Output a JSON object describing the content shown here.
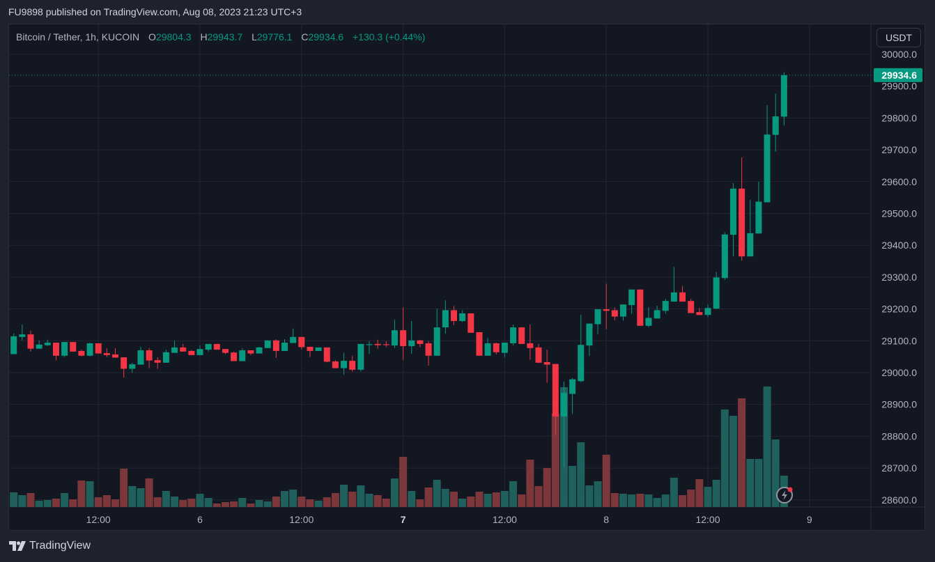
{
  "publish_line": "FU9898 published on TradingView.com, Aug 08, 2023 21:23 UTC+3",
  "legend": {
    "symbol": "Bitcoin / Tether, 1h, KUCOIN",
    "o_label": "O",
    "o_value": "29804.3",
    "h_label": "H",
    "h_value": "29943.7",
    "l_label": "L",
    "l_value": "29776.1",
    "c_label": "C",
    "c_value": "29934.6",
    "change": "+130.3 (+0.44%)"
  },
  "currency_button": "USDT",
  "brand": "TradingView",
  "colors": {
    "up": "#089981",
    "down": "#f23645",
    "up_volume": "#1f5f5c",
    "down_volume": "#7c373b",
    "background": "#131722",
    "grid": "#242733",
    "axis_text": "#b2b5be"
  },
  "chart_data": {
    "type": "candlestick",
    "interval": "1h",
    "x_start": "2023-08-05 02:00",
    "ylim": [
      28600,
      30000
    ],
    "y_ticks": [
      "28600.0",
      "28700.0",
      "28800.0",
      "28900.0",
      "29000.0",
      "29100.0",
      "29200.0",
      "29300.0",
      "29400.0",
      "29500.0",
      "29600.0",
      "29700.0",
      "29800.0",
      "29900.0",
      "30000.0"
    ],
    "x_ticks": [
      {
        "label": "12:00",
        "time": "2023-08-05 12:00",
        "bold": false
      },
      {
        "label": "6",
        "time": "2023-08-06 00:00",
        "bold": false
      },
      {
        "label": "12:00",
        "time": "2023-08-06 12:00",
        "bold": false
      },
      {
        "label": "7",
        "time": "2023-08-07 00:00",
        "bold": true
      },
      {
        "label": "12:00",
        "time": "2023-08-07 12:00",
        "bold": false
      },
      {
        "label": "8",
        "time": "2023-08-08 00:00",
        "bold": false
      },
      {
        "label": "12:00",
        "time": "2023-08-08 12:00",
        "bold": false
      },
      {
        "label": "9",
        "time": "2023-08-09 00:00",
        "bold": false
      }
    ],
    "grid": true,
    "last_price": "29934.6",
    "ohlc_columns": [
      "open",
      "high",
      "low",
      "close"
    ],
    "ohlc": [
      [
        29058,
        29123,
        29058,
        29114
      ],
      [
        29112,
        29151,
        29101,
        29120
      ],
      [
        29120,
        29131,
        29066,
        29075
      ],
      [
        29075,
        29101,
        29075,
        29088
      ],
      [
        29086,
        29103,
        29083,
        29094
      ],
      [
        29094,
        29094,
        29038,
        29053
      ],
      [
        29053,
        29096,
        29049,
        29096
      ],
      [
        29096,
        29096,
        29066,
        29066
      ],
      [
        29068,
        29072,
        29051,
        29053
      ],
      [
        29053,
        29094,
        29051,
        29092
      ],
      [
        29092,
        29092,
        29060,
        29060
      ],
      [
        29061,
        29077,
        29049,
        29055
      ],
      [
        29057,
        29077,
        29047,
        29047
      ],
      [
        29048,
        29048,
        28985,
        29012
      ],
      [
        29012,
        29031,
        28999,
        29026
      ],
      [
        29025,
        29081,
        29025,
        29070
      ],
      [
        29070,
        29077,
        29014,
        29038
      ],
      [
        29039,
        29048,
        29012,
        29031
      ],
      [
        29031,
        29072,
        29031,
        29064
      ],
      [
        29062,
        29101,
        29062,
        29079
      ],
      [
        29079,
        29090,
        29066,
        29066
      ],
      [
        29068,
        29070,
        29055,
        29055
      ],
      [
        29055,
        29085,
        29055,
        29074
      ],
      [
        29072,
        29090,
        29066,
        29090
      ],
      [
        29090,
        29090,
        29072,
        29072
      ],
      [
        29074,
        29074,
        29058,
        29062
      ],
      [
        29063,
        29066,
        29036,
        29036
      ],
      [
        29036,
        29077,
        29036,
        29070
      ],
      [
        29070,
        29070,
        29055,
        29060
      ],
      [
        29060,
        29081,
        29060,
        29079
      ],
      [
        29077,
        29101,
        29077,
        29101
      ],
      [
        29101,
        29105,
        29046,
        29068
      ],
      [
        29068,
        29105,
        29068,
        29094
      ],
      [
        29093,
        29138,
        29093,
        29112
      ],
      [
        29112,
        29112,
        29073,
        29080
      ],
      [
        29081,
        29081,
        29049,
        29068
      ],
      [
        29068,
        29079,
        29068,
        29079
      ],
      [
        29079,
        29079,
        29032,
        29034
      ],
      [
        29035,
        29039,
        29014,
        29014
      ],
      [
        29014,
        29062,
        28994,
        29037
      ],
      [
        29037,
        29053,
        29003,
        29009
      ],
      [
        29009,
        29090,
        29003,
        29090
      ],
      [
        29088,
        29099,
        29058,
        29089
      ],
      [
        29090,
        29103,
        29075,
        29086
      ],
      [
        29089,
        29099,
        29080,
        29087
      ],
      [
        29085,
        29166,
        29077,
        29133
      ],
      [
        29133,
        29205,
        29040,
        29083
      ],
      [
        29083,
        29162,
        29059,
        29101
      ],
      [
        29101,
        29103,
        29079,
        29090
      ],
      [
        29092,
        29099,
        29022,
        29053
      ],
      [
        29053,
        29201,
        29053,
        29142
      ],
      [
        29142,
        29227,
        29122,
        29196
      ],
      [
        29196,
        29209,
        29149,
        29162
      ],
      [
        29162,
        29196,
        29159,
        29186
      ],
      [
        29186,
        29186,
        29125,
        29125
      ],
      [
        29127,
        29127,
        29053,
        29053
      ],
      [
        29053,
        29109,
        29053,
        29092
      ],
      [
        29092,
        29094,
        29057,
        29064
      ],
      [
        29062,
        29094,
        29049,
        29094
      ],
      [
        29092,
        29151,
        29085,
        29142
      ],
      [
        29142,
        29142,
        29090,
        29090
      ],
      [
        29092,
        29151,
        29040,
        29077
      ],
      [
        29079,
        29090,
        29031,
        29031
      ],
      [
        29033,
        29072,
        28968,
        29025
      ],
      [
        29027,
        29027,
        28803,
        28862
      ],
      [
        28862,
        28972,
        28703,
        28936
      ],
      [
        28933,
        28983,
        28870,
        28979
      ],
      [
        28973,
        29182,
        28970,
        29087
      ],
      [
        29085,
        29154,
        29052,
        29154
      ],
      [
        29152,
        29199,
        29121,
        29199
      ],
      [
        29199,
        29279,
        29136,
        29194
      ],
      [
        29196,
        29205,
        29165,
        29176
      ],
      [
        29176,
        29214,
        29163,
        29214
      ],
      [
        29212,
        29261,
        29185,
        29261
      ],
      [
        29261,
        29261,
        29147,
        29147
      ],
      [
        29147,
        29205,
        29143,
        29172
      ],
      [
        29170,
        29210,
        29170,
        29196
      ],
      [
        29194,
        29232,
        29185,
        29225
      ],
      [
        29223,
        29332,
        29223,
        29252
      ],
      [
        29252,
        29272,
        29223,
        29223
      ],
      [
        29225,
        29232,
        29187,
        29187
      ],
      [
        29190,
        29203,
        29181,
        29181
      ],
      [
        29181,
        29214,
        29174,
        29203
      ],
      [
        29201,
        29316,
        29199,
        29299
      ],
      [
        29297,
        29441,
        29291,
        29434
      ],
      [
        29433,
        29595,
        29365,
        29578
      ],
      [
        29578,
        29676,
        29352,
        29365
      ],
      [
        29365,
        29543,
        29365,
        29438
      ],
      [
        29437,
        29600,
        29437,
        29537
      ],
      [
        29535,
        29840,
        29535,
        29748
      ],
      [
        29747,
        29877,
        29694,
        29805
      ],
      [
        29804.3,
        29943.7,
        29776.1,
        29934.6
      ]
    ],
    "volume_relative": [
      21,
      17,
      20,
      9,
      10,
      12,
      20,
      11,
      38,
      37,
      14,
      17,
      11,
      55,
      30,
      27,
      41,
      14,
      23,
      15,
      10,
      12,
      19,
      13,
      5,
      7,
      8,
      13,
      5,
      10,
      8,
      15,
      23,
      25,
      15,
      11,
      9,
      14,
      20,
      32,
      22,
      31,
      19,
      17,
      12,
      41,
      72,
      23,
      11,
      28,
      39,
      26,
      22,
      12,
      15,
      22,
      19,
      21,
      23,
      37,
      18,
      68,
      30,
      56,
      134,
      172,
      59,
      93,
      31,
      37,
      75,
      20,
      19,
      18,
      19,
      18,
      13,
      18,
      42,
      17,
      25,
      40,
      29,
      39,
      140,
      131,
      156,
      69,
      69,
      173,
      97,
      45
    ]
  }
}
